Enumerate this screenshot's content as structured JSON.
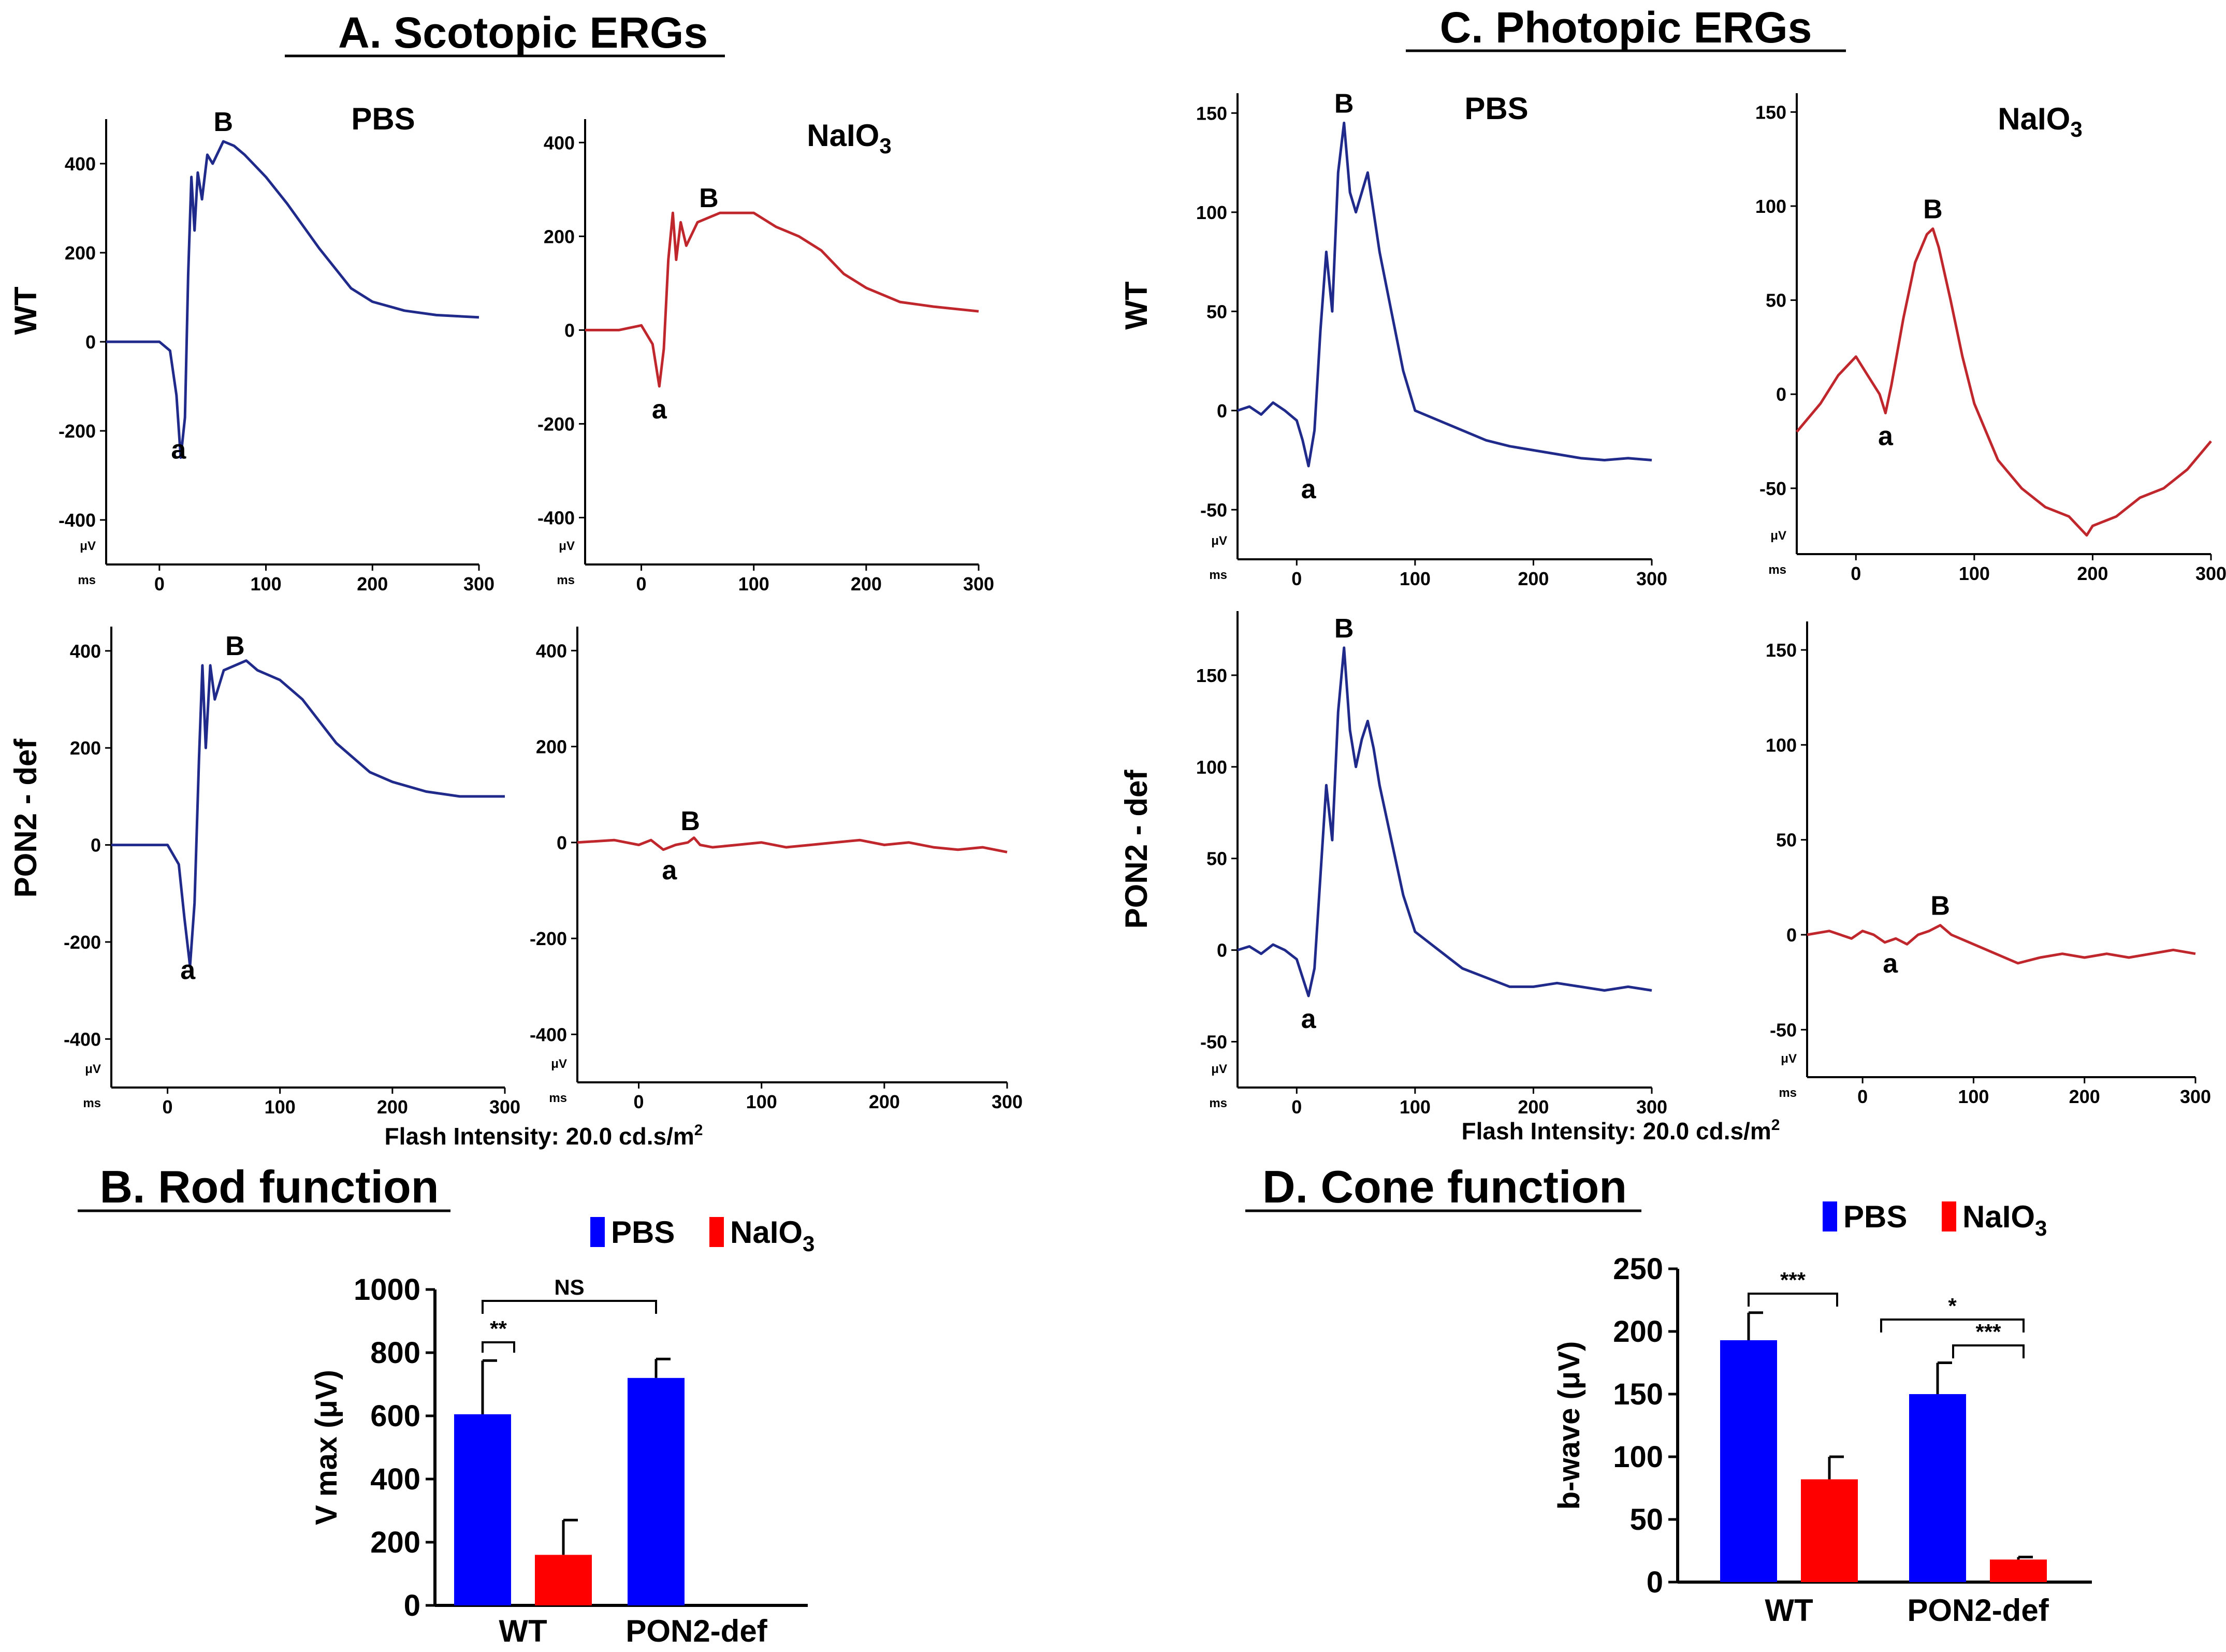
{
  "sections": {
    "a_title": "A. Scotopic ERGs",
    "b_title": "B. Rod function",
    "c_title": "C. Photopic ERGs",
    "d_title": "D. Cone function"
  },
  "labels": {
    "pbs": "PBS",
    "naio3": "NaIO",
    "naio3_sub": "3",
    "row_wt": "WT",
    "row_pon2": "PON2 - def",
    "flash_prefix": "Flash Intensity: 20.0 cd.s/m",
    "flash_sup": "2",
    "peak_b": "B",
    "peak_a": "a",
    "unit_uv": "μV",
    "unit_ms": "ms"
  },
  "colors": {
    "pbs_trace": "#1f2a8a",
    "naio3_trace": "#c0272d",
    "pbs_bar": "#0000ff",
    "naio3_bar": "#ff0000"
  },
  "chart_data": [
    {
      "id": "scotopic-wt-pbs",
      "type": "line",
      "color": "pbs_trace",
      "x": [
        -50,
        0,
        10,
        16,
        20,
        24,
        27,
        30,
        33,
        36,
        40,
        45,
        50,
        60,
        70,
        80,
        100,
        120,
        150,
        180,
        200,
        230,
        260,
        300
      ],
      "y": [
        0,
        0,
        -20,
        -120,
        -260,
        -170,
        150,
        370,
        250,
        380,
        320,
        420,
        400,
        450,
        440,
        420,
        370,
        310,
        210,
        120,
        90,
        70,
        60,
        55
      ],
      "xlim": [
        -50,
        300
      ],
      "ylim": [
        -500,
        500
      ],
      "xticks": [
        "0",
        "100",
        "200",
        "300"
      ],
      "yticks": [
        "400",
        "200",
        "0",
        "-200",
        "-400"
      ],
      "peak_a_x": 18,
      "peak_b_x": 60
    },
    {
      "id": "scotopic-wt-naio3",
      "type": "line",
      "color": "naio3_trace",
      "x": [
        -50,
        -20,
        0,
        10,
        16,
        20,
        24,
        28,
        31,
        35,
        40,
        50,
        60,
        70,
        80,
        100,
        120,
        140,
        160,
        180,
        200,
        230,
        260,
        300
      ],
      "y": [
        0,
        0,
        10,
        -30,
        -120,
        -40,
        150,
        250,
        150,
        230,
        180,
        230,
        240,
        250,
        250,
        250,
        220,
        200,
        170,
        120,
        90,
        60,
        50,
        40
      ],
      "xlim": [
        -50,
        300
      ],
      "ylim": [
        -500,
        450
      ],
      "xticks": [
        "0",
        "100",
        "200",
        "300"
      ],
      "yticks": [
        "400",
        "200",
        "0",
        "-200",
        "-400"
      ],
      "peak_a_x": 16,
      "peak_b_x": 60
    },
    {
      "id": "scotopic-pon2-pbs",
      "type": "line",
      "color": "pbs_trace",
      "x": [
        -50,
        0,
        10,
        15,
        20,
        24,
        28,
        31,
        34,
        38,
        42,
        50,
        60,
        70,
        80,
        100,
        120,
        150,
        180,
        200,
        230,
        260,
        300
      ],
      "y": [
        0,
        0,
        -40,
        -150,
        -250,
        -120,
        180,
        370,
        200,
        370,
        300,
        360,
        370,
        380,
        360,
        340,
        300,
        210,
        150,
        130,
        110,
        100,
        100
      ],
      "xlim": [
        -50,
        300
      ],
      "ylim": [
        -500,
        450
      ],
      "xticks": [
        "0",
        "100",
        "200",
        "300"
      ],
      "yticks": [
        "400",
        "200",
        "0",
        "-200",
        "-400"
      ],
      "peak_a_x": 18,
      "peak_b_x": 60
    },
    {
      "id": "scotopic-pon2-naio3",
      "type": "line",
      "color": "naio3_trace",
      "x": [
        -50,
        -20,
        0,
        10,
        20,
        30,
        40,
        45,
        50,
        60,
        80,
        100,
        120,
        140,
        160,
        180,
        200,
        220,
        240,
        260,
        280,
        300
      ],
      "y": [
        0,
        5,
        -5,
        5,
        -15,
        -5,
        0,
        10,
        -5,
        -10,
        -5,
        0,
        -10,
        -5,
        0,
        5,
        -5,
        0,
        -10,
        -15,
        -10,
        -20
      ],
      "xlim": [
        -50,
        300
      ],
      "ylim": [
        -500,
        450
      ],
      "xticks": [
        "0",
        "100",
        "200",
        "300"
      ],
      "yticks": [
        "400",
        "200",
        "0",
        "-200",
        "-400"
      ],
      "peak_a_x": 25,
      "peak_b_x": 42
    },
    {
      "id": "photopic-wt-pbs",
      "type": "line",
      "color": "pbs_trace",
      "x": [
        -50,
        -40,
        -30,
        -20,
        -10,
        0,
        5,
        10,
        15,
        20,
        25,
        30,
        35,
        40,
        45,
        50,
        55,
        60,
        65,
        70,
        80,
        90,
        100,
        120,
        140,
        160,
        180,
        200,
        220,
        240,
        260,
        280,
        300
      ],
      "y": [
        0,
        2,
        -2,
        4,
        0,
        -5,
        -15,
        -28,
        -10,
        40,
        80,
        50,
        120,
        145,
        110,
        100,
        110,
        120,
        100,
        80,
        50,
        20,
        0,
        -5,
        -10,
        -15,
        -18,
        -20,
        -22,
        -24,
        -25,
        -24,
        -25
      ],
      "xlim": [
        -50,
        300
      ],
      "ylim": [
        -75,
        160
      ],
      "xticks": [
        "0",
        "100",
        "200",
        "300"
      ],
      "yticks": [
        "150",
        "100",
        "50",
        "0",
        "-50"
      ],
      "peak_a_x": 10,
      "peak_b_x": 40
    },
    {
      "id": "photopic-wt-naio3",
      "type": "line",
      "color": "naio3_trace",
      "x": [
        -50,
        -30,
        -15,
        0,
        10,
        20,
        25,
        30,
        40,
        50,
        60,
        65,
        70,
        80,
        90,
        100,
        110,
        120,
        140,
        160,
        180,
        195,
        200,
        220,
        240,
        260,
        280,
        300
      ],
      "y": [
        -20,
        -5,
        10,
        20,
        10,
        0,
        -10,
        5,
        40,
        70,
        85,
        88,
        78,
        50,
        20,
        -5,
        -20,
        -35,
        -50,
        -60,
        -65,
        -75,
        -70,
        -65,
        -55,
        -50,
        -40,
        -25
      ],
      "xlim": [
        -50,
        300
      ],
      "ylim": [
        -85,
        160
      ],
      "xticks": [
        "0",
        "100",
        "200",
        "300"
      ],
      "yticks": [
        "150",
        "100",
        "50",
        "0",
        "-50"
      ],
      "peak_a_x": 25,
      "peak_b_x": 65
    },
    {
      "id": "photopic-pon2-pbs",
      "type": "line",
      "color": "pbs_trace",
      "x": [
        -50,
        -40,
        -30,
        -20,
        -10,
        0,
        5,
        10,
        15,
        20,
        25,
        30,
        35,
        40,
        45,
        50,
        55,
        60,
        65,
        70,
        80,
        90,
        100,
        120,
        140,
        160,
        180,
        200,
        220,
        240,
        260,
        280,
        300
      ],
      "y": [
        0,
        2,
        -2,
        3,
        0,
        -5,
        -15,
        -25,
        -10,
        40,
        90,
        60,
        130,
        165,
        120,
        100,
        115,
        125,
        110,
        90,
        60,
        30,
        10,
        0,
        -10,
        -15,
        -20,
        -20,
        -18,
        -20,
        -22,
        -20,
        -22
      ],
      "xlim": [
        -50,
        300
      ],
      "ylim": [
        -75,
        185
      ],
      "xticks": [
        "0",
        "100",
        "200",
        "300"
      ],
      "yticks": [
        "150",
        "100",
        "50",
        "0",
        "-50"
      ],
      "peak_a_x": 10,
      "peak_b_x": 40
    },
    {
      "id": "photopic-pon2-naio3",
      "type": "line",
      "color": "naio3_trace",
      "x": [
        -50,
        -30,
        -10,
        0,
        10,
        20,
        30,
        40,
        50,
        60,
        70,
        80,
        100,
        120,
        140,
        160,
        180,
        200,
        220,
        240,
        260,
        280,
        300
      ],
      "y": [
        0,
        2,
        -2,
        2,
        0,
        -4,
        -2,
        -5,
        0,
        2,
        5,
        0,
        -5,
        -10,
        -15,
        -12,
        -10,
        -12,
        -10,
        -12,
        -10,
        -8,
        -10
      ],
      "xlim": [
        -50,
        300
      ],
      "ylim": [
        -75,
        165
      ],
      "xticks": [
        "0",
        "100",
        "200",
        "300"
      ],
      "yticks": [
        "150",
        "100",
        "50",
        "0",
        "-50"
      ],
      "peak_a_x": 25,
      "peak_b_x": 70
    },
    {
      "id": "rod-function",
      "type": "bar",
      "title": "B. Rod function",
      "ylabel": "V max (μV)",
      "categories": [
        "WT",
        "PON2-def"
      ],
      "series": [
        {
          "name": "PBS",
          "color": "pbs_bar",
          "values": [
            605,
            720
          ],
          "errors": [
            170,
            60
          ]
        },
        {
          "name": "NaIO3",
          "color": "naio3_bar",
          "values": [
            160,
            null
          ],
          "errors": [
            110,
            null
          ]
        }
      ],
      "ylim": [
        0,
        1000
      ],
      "yticks": [
        "0",
        "200",
        "400",
        "600",
        "800",
        "1000"
      ],
      "significance": [
        {
          "label": "**",
          "between": "WT PBS vs WT NaIO3"
        },
        {
          "label": "NS",
          "between": "WT PBS vs PON2-def PBS"
        }
      ]
    },
    {
      "id": "cone-function",
      "type": "bar",
      "title": "D. Cone function",
      "ylabel": "b-wave (μV)",
      "categories": [
        "WT",
        "PON2-def"
      ],
      "series": [
        {
          "name": "PBS",
          "color": "pbs_bar",
          "values": [
            193,
            150
          ],
          "errors": [
            22,
            25
          ]
        },
        {
          "name": "NaIO3",
          "color": "naio3_bar",
          "values": [
            82,
            18
          ],
          "errors": [
            18,
            2
          ]
        }
      ],
      "ylim": [
        0,
        250
      ],
      "yticks": [
        "0",
        "50",
        "100",
        "150",
        "200",
        "250"
      ],
      "significance": [
        {
          "label": "***",
          "between": "WT PBS vs WT NaIO3"
        },
        {
          "label": "*",
          "between": "WT NaIO3 vs PON2-def NaIO3"
        },
        {
          "label": "***",
          "between": "PON2-def PBS vs PON2-def NaIO3"
        }
      ]
    }
  ]
}
